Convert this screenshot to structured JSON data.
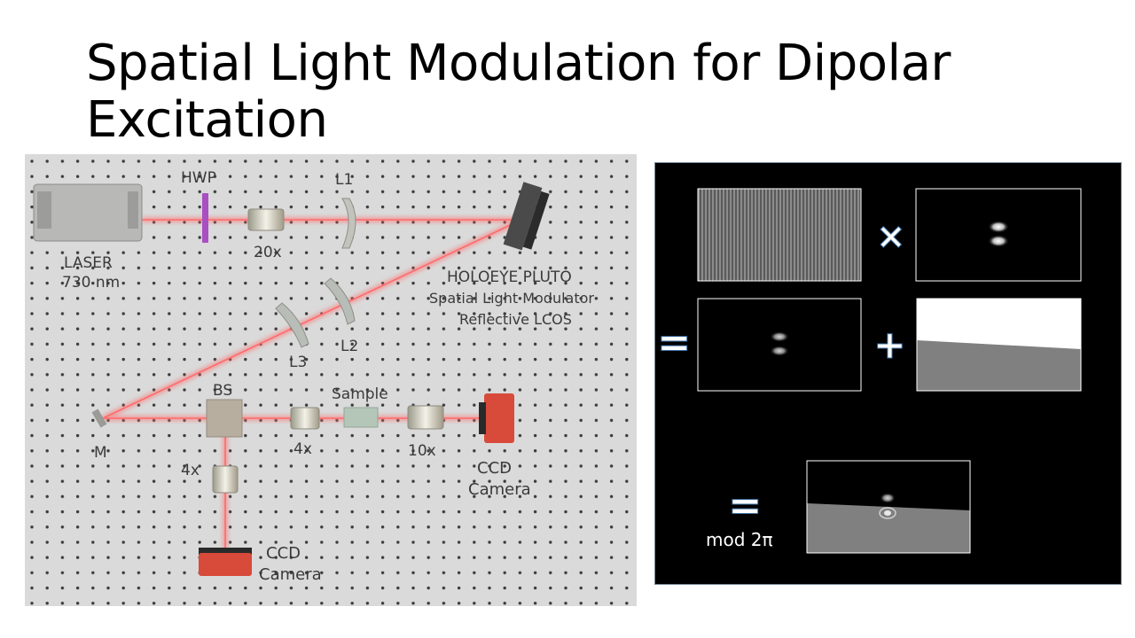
{
  "slide": {
    "title": "Spatial Light Modulation for Dipolar Excitation"
  },
  "setup_diagram": {
    "labels": {
      "hwp": "HWP",
      "l1": "L1",
      "laser": "LASER",
      "laser_wavelength": "730 nm",
      "objective_20x": "20x",
      "slm_line1": "HOLOEYE PLUTO",
      "slm_line2": "Spatial Light Modulator",
      "slm_line3": "Reflective LCOS",
      "l2": "L2",
      "l3": "L3",
      "bs": "BS",
      "sample": "Sample",
      "mirror": "M",
      "objective_4x_a": "4x",
      "objective_10x": "10x",
      "ccd_right_line1": "CCD",
      "ccd_right_line2": "Camera",
      "objective_4x_b": "4x",
      "ccd_bottom_line1": "CCD",
      "ccd_bottom_line2": "Camera"
    },
    "colors": {
      "table": "#d9d9d9",
      "beam": "#ff5a5a",
      "camera_body": "#d84a3a",
      "hwp": "#a94fc2"
    }
  },
  "slm_panel": {
    "operators": {
      "times": "×",
      "equals_1": "=",
      "plus": "+",
      "equals_2": "="
    },
    "mod_label": "mod 2π",
    "icons": [
      "grating-pattern",
      "dipole-spot-pattern",
      "combined-spot-pattern",
      "tilted-phase-ramp",
      "final-hologram"
    ]
  }
}
